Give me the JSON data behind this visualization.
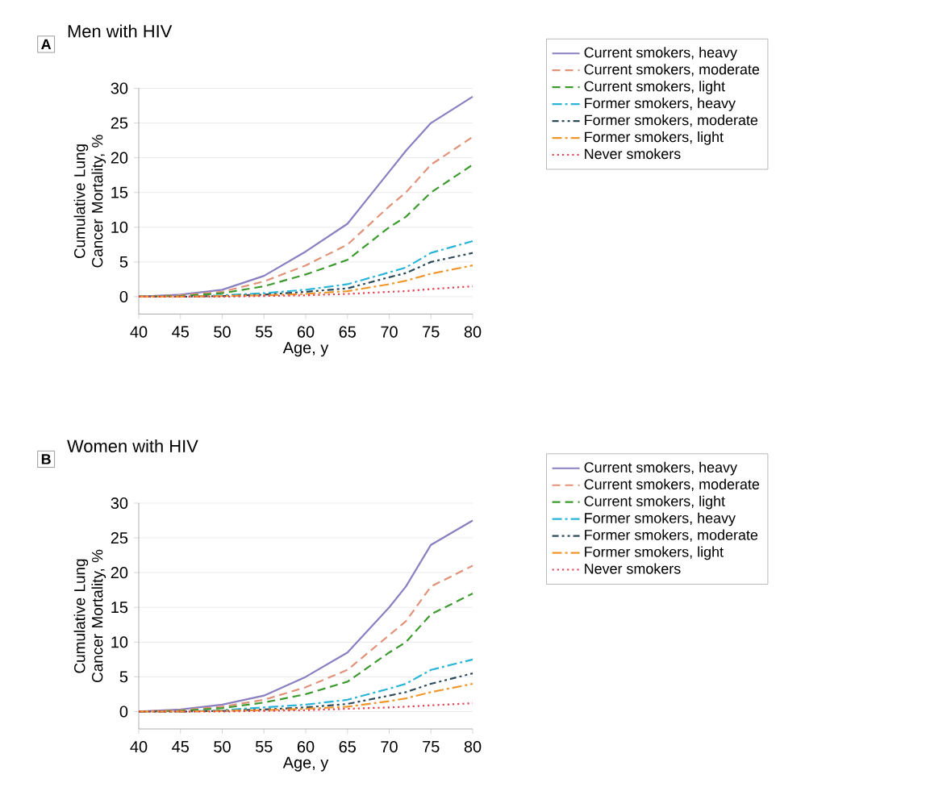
{
  "chart_data": [
    {
      "type": "line",
      "title": "Men with HIV",
      "annotations": [
        "A"
      ],
      "xlabel": "Age, y",
      "ylabel": "Cumulative Lung Cancer Mortality, %",
      "x": [
        40,
        45,
        50,
        55,
        60,
        65,
        70,
        72,
        75,
        80
      ],
      "xlim": [
        40,
        80
      ],
      "xticks": [
        40,
        45,
        50,
        55,
        60,
        65,
        70,
        75,
        80
      ],
      "ylim": [
        -2.5,
        30
      ],
      "yticks": [
        0,
        5,
        10,
        15,
        20,
        25,
        30
      ],
      "grid": "y",
      "legend": "right",
      "series": [
        {
          "name": "Current smokers, heavy",
          "color": "#8a7fc0",
          "line_style": "solid",
          "values": [
            0,
            0.3,
            1,
            3,
            6.5,
            10.5,
            18,
            21,
            25,
            28.8
          ]
        },
        {
          "name": "Current smokers, moderate",
          "color": "#e0937a",
          "line_style": "dashed",
          "values": [
            0,
            0.2,
            0.7,
            2.2,
            4.5,
            7.5,
            13,
            15,
            19,
            23
          ]
        },
        {
          "name": "Current smokers, light",
          "color": "#3c9a2e",
          "line_style": "dashed",
          "values": [
            0,
            0.1,
            0.5,
            1.5,
            3.2,
            5.3,
            10,
            11.5,
            15,
            19
          ]
        },
        {
          "name": "Former smokers, heavy",
          "color": "#2ab5d8",
          "line_style": "dashdot",
          "values": [
            0,
            0,
            0.2,
            0.5,
            1,
            1.8,
            3.5,
            4.2,
            6.3,
            8
          ]
        },
        {
          "name": "Former smokers, moderate",
          "color": "#2c4a5a",
          "line_style": "dashdotdot",
          "values": [
            0,
            0,
            0.1,
            0.3,
            0.7,
            1.2,
            2.8,
            3.4,
            5,
            6.3
          ]
        },
        {
          "name": "Former smokers, light",
          "color": "#f0962a",
          "line_style": "dashdot",
          "values": [
            0,
            0,
            0.1,
            0.2,
            0.4,
            0.8,
            1.8,
            2.3,
            3.3,
            4.5
          ]
        },
        {
          "name": "Never smokers",
          "color": "#e04050",
          "line_style": "dotted",
          "values": [
            0,
            0,
            0,
            0.1,
            0.2,
            0.4,
            0.7,
            0.8,
            1.1,
            1.5
          ]
        }
      ]
    },
    {
      "type": "line",
      "title": "Women with HIV",
      "annotations": [
        "B"
      ],
      "xlabel": "Age, y",
      "ylabel": "Cumulative Lung Cancer Mortality, %",
      "x": [
        40,
        45,
        50,
        55,
        60,
        65,
        70,
        72,
        75,
        80
      ],
      "xlim": [
        40,
        80
      ],
      "xticks": [
        40,
        45,
        50,
        55,
        60,
        65,
        70,
        75,
        80
      ],
      "ylim": [
        -2.5,
        30
      ],
      "yticks": [
        0,
        5,
        10,
        15,
        20,
        25,
        30
      ],
      "grid": "y",
      "legend": "right",
      "series": [
        {
          "name": "Current smokers, heavy",
          "color": "#8a7fc0",
          "line_style": "solid",
          "values": [
            0,
            0.3,
            1,
            2.3,
            5,
            8.5,
            15,
            18,
            24,
            27.5
          ]
        },
        {
          "name": "Current smokers, moderate",
          "color": "#e0937a",
          "line_style": "dashed",
          "values": [
            0,
            0.2,
            0.7,
            1.7,
            3.5,
            6,
            11,
            13,
            18,
            21
          ]
        },
        {
          "name": "Current smokers, light",
          "color": "#3c9a2e",
          "line_style": "dashed",
          "values": [
            0,
            0.1,
            0.5,
            1.3,
            2.5,
            4.3,
            8.5,
            10,
            14,
            17
          ]
        },
        {
          "name": "Former smokers, heavy",
          "color": "#2ab5d8",
          "line_style": "dashdot",
          "values": [
            0,
            0,
            0.2,
            0.6,
            1,
            1.7,
            3.3,
            4,
            6,
            7.5
          ]
        },
        {
          "name": "Former smokers, moderate",
          "color": "#2c4a5a",
          "line_style": "dashdotdot",
          "values": [
            0,
            0,
            0.1,
            0.3,
            0.6,
            1.1,
            2.3,
            2.8,
            4,
            5.5
          ]
        },
        {
          "name": "Former smokers, light",
          "color": "#f0962a",
          "line_style": "dashdot",
          "values": [
            0,
            0,
            0.1,
            0.2,
            0.4,
            0.7,
            1.5,
            1.9,
            2.8,
            4
          ]
        },
        {
          "name": "Never smokers",
          "color": "#e04050",
          "line_style": "dotted",
          "values": [
            0,
            0,
            0,
            0.1,
            0.2,
            0.4,
            0.6,
            0.7,
            0.9,
            1.2
          ]
        }
      ]
    }
  ]
}
